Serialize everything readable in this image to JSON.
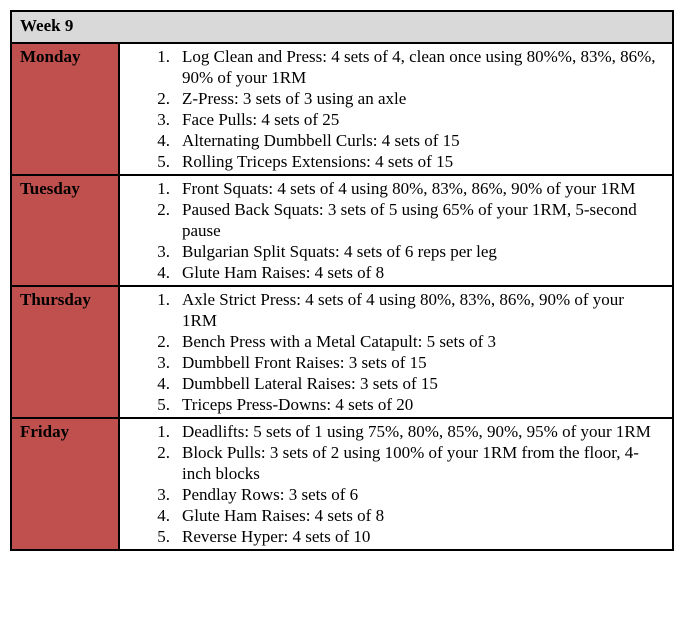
{
  "title": "Week 9",
  "days": [
    {
      "day": "Monday",
      "items": [
        {
          "n": "1.",
          "text": "Log Clean and Press: 4 sets of 4, clean once using 80%%, 83%, 86%, 90% of your 1RM"
        },
        {
          "n": "2.",
          "text": "Z-Press: 3 sets of 3 using an axle"
        },
        {
          "n": "3.",
          "text": "Face Pulls: 4 sets of 25"
        },
        {
          "n": "4.",
          "text": "Alternating Dumbbell Curls: 4 sets of 15"
        },
        {
          "n": "5.",
          "text": "Rolling Triceps Extensions: 4 sets of 15"
        }
      ]
    },
    {
      "day": "Tuesday",
      "items": [
        {
          "n": "1.",
          "text": "Front Squats: 4 sets of 4 using 80%, 83%, 86%, 90% of your 1RM"
        },
        {
          "n": "2.",
          "text": "Paused Back Squats: 3 sets of 5 using 65% of your 1RM, 5-second pause"
        },
        {
          "n": "3.",
          "text": "Bulgarian Split Squats: 4 sets of 6 reps per leg"
        },
        {
          "n": "4.",
          "text": "Glute Ham Raises: 4 sets of 8"
        }
      ]
    },
    {
      "day": "Thursday",
      "items": [
        {
          "n": "1.",
          "text": "Axle Strict Press: 4 sets of 4 using 80%, 83%, 86%, 90% of your 1RM"
        },
        {
          "n": "2.",
          "text": "Bench Press with a Metal Catapult: 5 sets of 3"
        },
        {
          "n": "3.",
          "text": "Dumbbell Front Raises: 3 sets of 15"
        },
        {
          "n": "4.",
          "text": "Dumbbell Lateral Raises: 3 sets of 15"
        },
        {
          "n": "5.",
          "text": "Triceps Press-Downs: 4 sets of 20"
        }
      ]
    },
    {
      "day": "Friday",
      "items": [
        {
          "n": "1.",
          "text": "Deadlifts: 5 sets of 1 using 75%, 80%, 85%, 90%, 95% of your 1RM"
        },
        {
          "n": "2.",
          "text": "Block Pulls: 3 sets of 2 using 100% of your 1RM from the floor, 4-inch blocks"
        },
        {
          "n": "3.",
          "text": "Pendlay Rows: 3 sets of 6"
        },
        {
          "n": "4.",
          "text": "Glute Ham Raises: 4 sets of 8"
        },
        {
          "n": "5.",
          "text": "Reverse Hyper: 4 sets of 10"
        }
      ]
    }
  ],
  "colors": {
    "header_bg": "#d9d9d9",
    "day_bg": "#c0504d",
    "border": "#000000"
  }
}
